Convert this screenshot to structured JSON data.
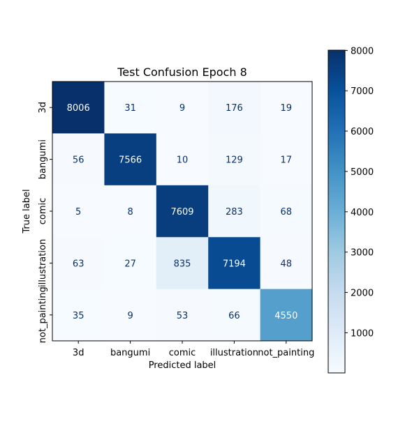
{
  "chart_data": {
    "type": "heatmap",
    "title": "Test Confusion Epoch 8",
    "xlabel": "Predicted label",
    "ylabel": "True label",
    "x_categories": [
      "3d",
      "bangumi",
      "comic",
      "illustration",
      "not_painting"
    ],
    "y_categories": [
      "3d",
      "bangumi",
      "comic",
      "illustration",
      "not_painting"
    ],
    "values": [
      [
        8006,
        31,
        9,
        176,
        19
      ],
      [
        56,
        7566,
        10,
        129,
        17
      ],
      [
        5,
        8,
        7609,
        283,
        68
      ],
      [
        63,
        27,
        835,
        7194,
        48
      ],
      [
        35,
        9,
        53,
        66,
        4550
      ]
    ],
    "colormap": "Blues",
    "colorbar": {
      "range": [
        5,
        8006
      ],
      "ticks": [
        1000,
        2000,
        3000,
        4000,
        5000,
        6000,
        7000,
        8000
      ]
    }
  }
}
